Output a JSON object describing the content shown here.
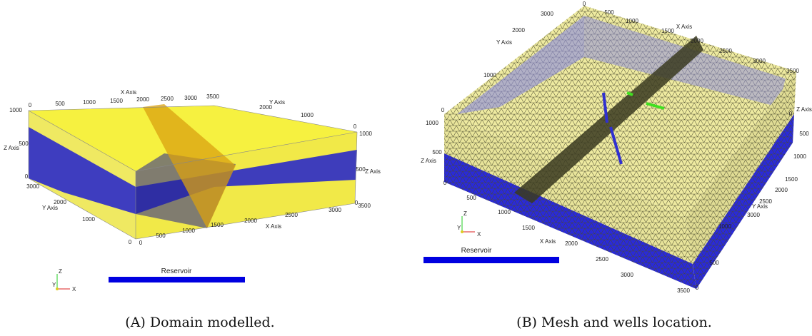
{
  "panels": [
    {
      "caption": "(A) Domain modelled.",
      "legend": "Reservoir",
      "triad": [
        "Z",
        "Y",
        "X"
      ],
      "labels": [
        "X Axis",
        "0",
        "500",
        "1000",
        "1500",
        "2000",
        "2500",
        "3000",
        "3500",
        "Y Axis",
        "2000",
        "1000",
        "0",
        "1000",
        "Z Axis",
        "500",
        "0",
        "1000",
        "500",
        "Z Axis",
        "0",
        "3500",
        "3000",
        "2000",
        "Y Axis",
        "1000",
        "0",
        "0",
        "500",
        "1000",
        "1500",
        "2000",
        "X Axis",
        "2500",
        "3000"
      ]
    },
    {
      "caption": "(B) Mesh and wells location.",
      "legend": "Reservoir",
      "triad": [
        "Z",
        "Y",
        "X"
      ],
      "labels": [
        "0",
        "500",
        "1000",
        "X Axis",
        "1500",
        "2000",
        "2500",
        "3000",
        "3500",
        "3000",
        "2000",
        "Y Axis",
        "1000",
        "0",
        "1000",
        "500",
        "Z Axis",
        "0",
        "Z Axis",
        "0",
        "500",
        "1000",
        "1500",
        "2000",
        "Y Axis",
        "2500",
        "3000",
        "500",
        "1000",
        "1500",
        "X Axis",
        "2000",
        "2500",
        "3000",
        "3500",
        "0",
        "500",
        "1000"
      ]
    }
  ]
}
